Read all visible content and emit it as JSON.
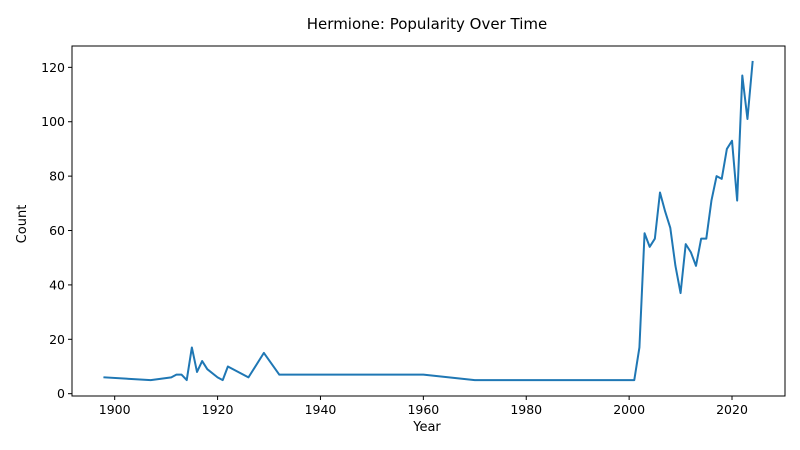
{
  "chart_data": {
    "type": "line",
    "title": "Hermione: Popularity Over Time",
    "xlabel": "Year",
    "ylabel": "Count",
    "xlim": [
      1891.7,
      2030.3
    ],
    "ylim": [
      -0.85,
      127.85
    ],
    "xticks": [
      1900,
      1920,
      1940,
      1960,
      1980,
      2000,
      2020
    ],
    "yticks": [
      0,
      20,
      40,
      60,
      80,
      100,
      120
    ],
    "grid": false,
    "color": "#1f77b4",
    "series": [
      {
        "x": [
          1898,
          1907,
          1911,
          1912,
          1913,
          1914,
          1915,
          1916,
          1917,
          1918,
          1920,
          1921,
          1922,
          1926,
          1929,
          1932,
          1960,
          1970,
          2001,
          2002,
          2003,
          2004,
          2005,
          2006,
          2007,
          2008,
          2009,
          2010,
          2011,
          2012,
          2013,
          2014,
          2015,
          2016,
          2017,
          2018,
          2019,
          2020,
          2021,
          2022,
          2023,
          2024
        ],
        "y": [
          6,
          5,
          6,
          7,
          7,
          5,
          17,
          8,
          12,
          9,
          6,
          5,
          10,
          6,
          15,
          7,
          7,
          5,
          5,
          17,
          59,
          54,
          57,
          74,
          67,
          61,
          47,
          37,
          55,
          52,
          47,
          57,
          57,
          71,
          80,
          79,
          90,
          93,
          71,
          117,
          101,
          122
        ]
      }
    ]
  }
}
